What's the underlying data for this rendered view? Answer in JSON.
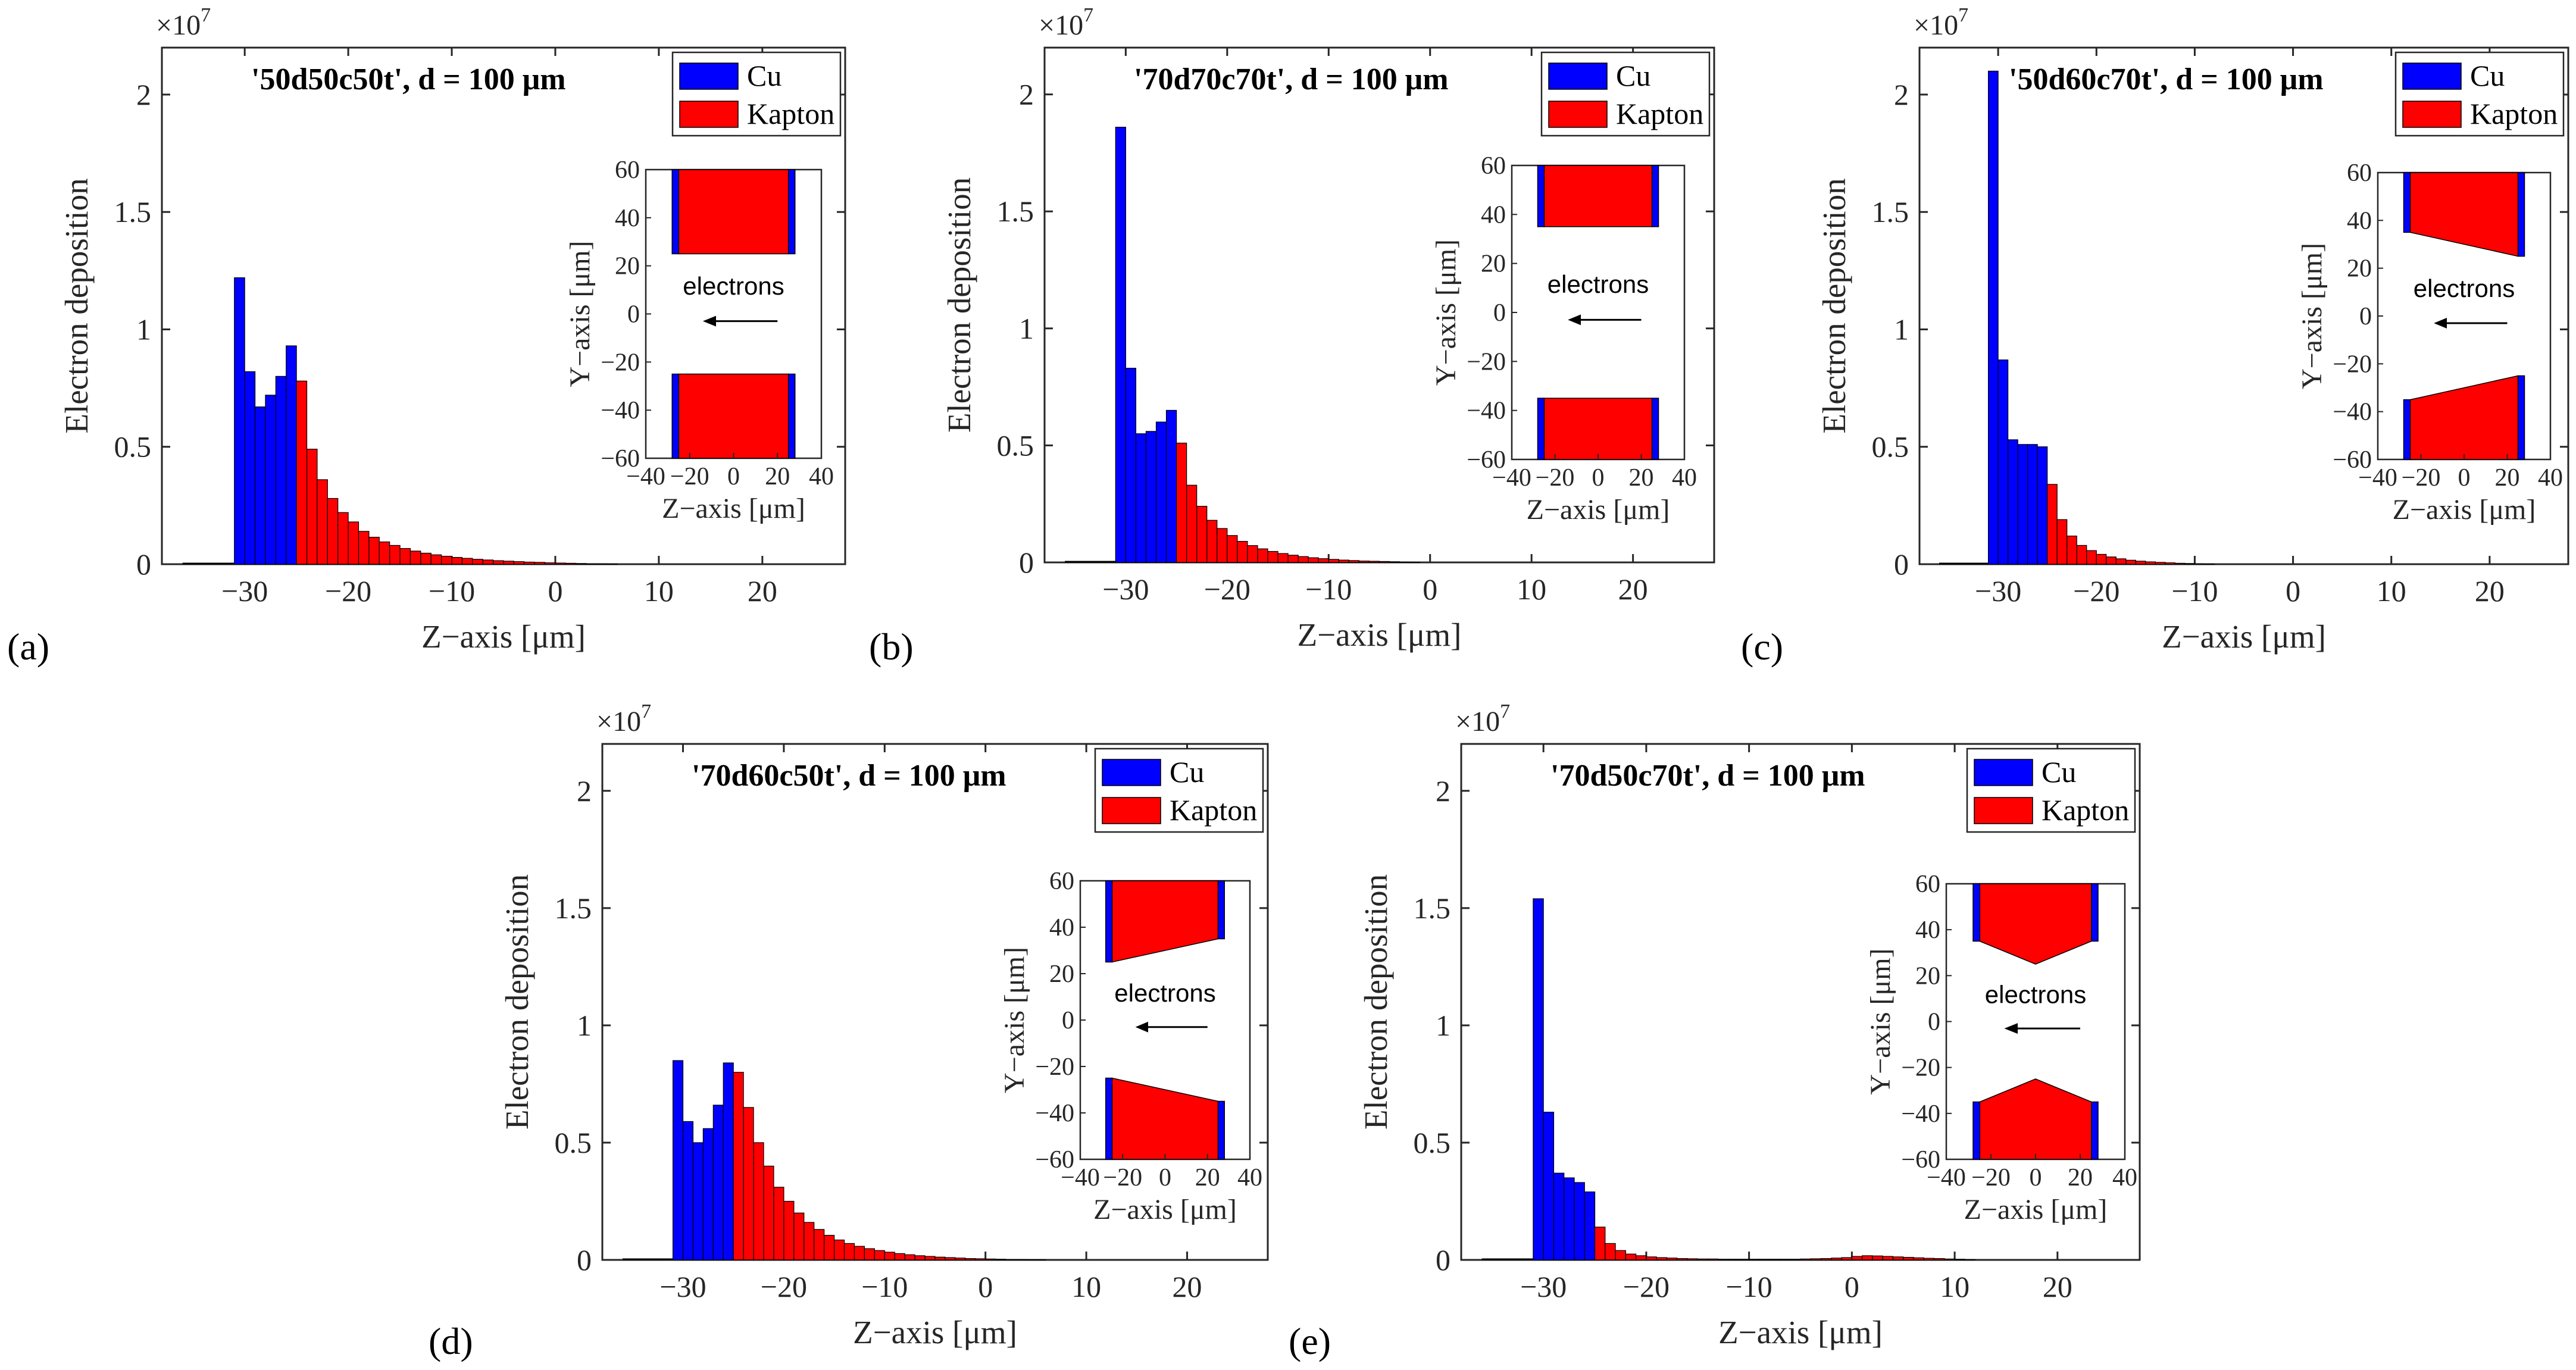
{
  "colors": {
    "cu": "#0000FF",
    "kapton": "#FF0000",
    "axis": "#262626",
    "background": "#FFFFFF"
  },
  "chart_data": [
    {
      "type": "bar",
      "panel_label": "(a)",
      "title": "'50d50c50t', d = 100 μm",
      "xlabel": "Z−axis [μm]",
      "ylabel": "Electron deposition",
      "multiplier": "×10",
      "multiplier_exp": "7",
      "xlim": [
        -38,
        28
      ],
      "ylim": [
        0,
        2.2
      ],
      "xticks": [
        -30,
        -20,
        -10,
        0,
        10,
        20
      ],
      "yticks": [
        0,
        0.5,
        1,
        1.5,
        2
      ],
      "bin_width": 1,
      "legend": [
        "Cu",
        "Kapton"
      ],
      "series": [
        {
          "name": "Cu",
          "x": [
            -31,
            -30,
            -29,
            -28,
            -27,
            -26
          ],
          "values": [
            1.22,
            0.82,
            0.67,
            0.72,
            0.8,
            0.93
          ]
        },
        {
          "name": "Kapton",
          "x": [
            -25,
            -24,
            -23,
            -22,
            -21,
            -20,
            -19,
            -18,
            -17,
            -16,
            -15,
            -14,
            -13,
            -12,
            -11,
            -10,
            -9,
            -8,
            -7,
            -6,
            -5,
            -4,
            -3,
            -2,
            -1,
            0,
            1,
            2,
            3,
            4,
            5
          ],
          "values": [
            0.78,
            0.49,
            0.36,
            0.28,
            0.22,
            0.18,
            0.14,
            0.115,
            0.095,
            0.08,
            0.067,
            0.056,
            0.047,
            0.04,
            0.034,
            0.029,
            0.025,
            0.021,
            0.018,
            0.015,
            0.013,
            0.011,
            0.009,
            0.008,
            0.006,
            0.005,
            0.004,
            0.003,
            0.002,
            0.002,
            0.001
          ]
        }
      ],
      "inset": {
        "xlabel": "Z−axis [μm]",
        "ylabel": "Y−axis [μm]",
        "annotation": "electrons",
        "xlim": [
          -40,
          40
        ],
        "ylim": [
          -60,
          60
        ],
        "xticks": [
          -40,
          -20,
          0,
          20,
          40
        ],
        "yticks": [
          -60,
          -40,
          -20,
          0,
          20,
          40,
          60
        ],
        "top_inner": [
          [
            -25,
            25
          ],
          [
            25,
            25
          ]
        ],
        "cu_width": 3,
        "cu_z": [
          -25,
          25
        ]
      }
    },
    {
      "type": "bar",
      "panel_label": "(b)",
      "title": "'70d70c70t', d = 100 μm",
      "xlabel": "Z−axis [μm]",
      "ylabel": "Electron deposition",
      "multiplier": "×10",
      "multiplier_exp": "7",
      "xlim": [
        -38,
        28
      ],
      "ylim": [
        0,
        2.2
      ],
      "xticks": [
        -30,
        -20,
        -10,
        0,
        10,
        20
      ],
      "yticks": [
        0,
        0.5,
        1,
        1.5,
        2
      ],
      "bin_width": 1,
      "legend": [
        "Cu",
        "Kapton"
      ],
      "series": [
        {
          "name": "Cu",
          "x": [
            -31,
            -30,
            -29,
            -28,
            -27,
            -26
          ],
          "values": [
            1.86,
            0.83,
            0.55,
            0.56,
            0.6,
            0.65
          ]
        },
        {
          "name": "Kapton",
          "x": [
            -25,
            -24,
            -23,
            -22,
            -21,
            -20,
            -19,
            -18,
            -17,
            -16,
            -15,
            -14,
            -13,
            -12,
            -11,
            -10,
            -9,
            -8,
            -7,
            -6,
            -5,
            -4,
            -3,
            -2
          ],
          "values": [
            0.51,
            0.33,
            0.24,
            0.18,
            0.145,
            0.115,
            0.09,
            0.072,
            0.058,
            0.047,
            0.038,
            0.031,
            0.025,
            0.02,
            0.016,
            0.013,
            0.01,
            0.008,
            0.006,
            0.005,
            0.004,
            0.003,
            0.002,
            0.001
          ]
        }
      ],
      "inset": {
        "xlabel": "Z−axis [μm]",
        "ylabel": "Y−axis [μm]",
        "annotation": "electrons",
        "xlim": [
          -40,
          40
        ],
        "ylim": [
          -60,
          60
        ],
        "xticks": [
          -40,
          -20,
          0,
          20,
          40
        ],
        "yticks": [
          -60,
          -40,
          -20,
          0,
          20,
          40,
          60
        ],
        "top_inner": [
          [
            -25,
            35
          ],
          [
            25,
            35
          ]
        ],
        "cu_width": 3,
        "cu_z": [
          -25,
          25
        ]
      }
    },
    {
      "type": "bar",
      "panel_label": "(c)",
      "title": "'50d60c70t', d = 100 μm",
      "xlabel": "Z−axis [μm]",
      "ylabel": "Electron deposition",
      "multiplier": "×10",
      "multiplier_exp": "7",
      "xlim": [
        -38,
        28
      ],
      "ylim": [
        0,
        2.2
      ],
      "xticks": [
        -30,
        -20,
        -10,
        0,
        10,
        20
      ],
      "yticks": [
        0,
        0.5,
        1,
        1.5,
        2
      ],
      "bin_width": 1,
      "legend": [
        "Cu",
        "Kapton"
      ],
      "series": [
        {
          "name": "Cu",
          "x": [
            -31,
            -30,
            -29,
            -28,
            -27,
            -26
          ],
          "values": [
            2.1,
            0.87,
            0.53,
            0.51,
            0.51,
            0.5
          ]
        },
        {
          "name": "Kapton",
          "x": [
            -25,
            -24,
            -23,
            -22,
            -21,
            -20,
            -19,
            -18,
            -17,
            -16,
            -15,
            -14,
            -13,
            -12,
            -11,
            -10,
            -9
          ],
          "values": [
            0.34,
            0.19,
            0.12,
            0.08,
            0.058,
            0.042,
            0.031,
            0.023,
            0.017,
            0.013,
            0.01,
            0.008,
            0.006,
            0.004,
            0.003,
            0.002,
            0.001
          ]
        }
      ],
      "inset": {
        "xlabel": "Z−axis [μm]",
        "ylabel": "Y−axis [μm]",
        "annotation": "electrons",
        "xlim": [
          -40,
          40
        ],
        "ylim": [
          -60,
          60
        ],
        "xticks": [
          -40,
          -20,
          0,
          20,
          40
        ],
        "yticks": [
          -60,
          -40,
          -20,
          0,
          20,
          40,
          60
        ],
        "top_inner": [
          [
            -25,
            35
          ],
          [
            25,
            25
          ]
        ],
        "cu_width": 3,
        "cu_z": [
          -25,
          25
        ]
      }
    },
    {
      "type": "bar",
      "panel_label": "(d)",
      "title": "'70d60c50t', d = 100 μm",
      "xlabel": "Z−axis [μm]",
      "ylabel": "Electron deposition",
      "multiplier": "×10",
      "multiplier_exp": "7",
      "xlim": [
        -38,
        28
      ],
      "ylim": [
        0,
        2.2
      ],
      "xticks": [
        -30,
        -20,
        -10,
        0,
        10,
        20
      ],
      "yticks": [
        0,
        0.5,
        1,
        1.5,
        2
      ],
      "bin_width": 1,
      "legend": [
        "Cu",
        "Kapton"
      ],
      "series": [
        {
          "name": "Cu",
          "x": [
            -31,
            -30,
            -29,
            -28,
            -27,
            -26
          ],
          "values": [
            0.85,
            0.59,
            0.5,
            0.56,
            0.66,
            0.84
          ]
        },
        {
          "name": "Kapton",
          "x": [
            -25,
            -24,
            -23,
            -22,
            -21,
            -20,
            -19,
            -18,
            -17,
            -16,
            -15,
            -14,
            -13,
            -12,
            -11,
            -10,
            -9,
            -8,
            -7,
            -6,
            -5,
            -4,
            -3,
            -2,
            -1,
            0,
            1,
            2,
            3,
            4,
            5
          ],
          "values": [
            0.8,
            0.65,
            0.5,
            0.4,
            0.31,
            0.25,
            0.2,
            0.16,
            0.13,
            0.105,
            0.085,
            0.07,
            0.058,
            0.048,
            0.04,
            0.033,
            0.027,
            0.022,
            0.018,
            0.015,
            0.012,
            0.01,
            0.008,
            0.006,
            0.005,
            0.004,
            0.003,
            0.002,
            0.002,
            0.001,
            0.001
          ]
        }
      ],
      "inset": {
        "xlabel": "Z−axis [μm]",
        "ylabel": "Y−axis [μm]",
        "annotation": "electrons",
        "xlim": [
          -40,
          40
        ],
        "ylim": [
          -60,
          60
        ],
        "xticks": [
          -40,
          -20,
          0,
          20,
          40
        ],
        "yticks": [
          -60,
          -40,
          -20,
          0,
          20,
          40,
          60
        ],
        "top_inner": [
          [
            -25,
            25
          ],
          [
            25,
            35
          ]
        ],
        "cu_width": 3,
        "cu_z": [
          -25,
          25
        ]
      }
    },
    {
      "type": "bar",
      "panel_label": "(e)",
      "title": "'70d50c70t', d = 100 μm",
      "xlabel": "Z−axis [μm]",
      "ylabel": "Electron deposition",
      "multiplier": "×10",
      "multiplier_exp": "7",
      "xlim": [
        -38,
        28
      ],
      "ylim": [
        0,
        2.2
      ],
      "xticks": [
        -30,
        -20,
        -10,
        0,
        10,
        20
      ],
      "yticks": [
        0,
        0.5,
        1,
        1.5,
        2
      ],
      "bin_width": 1,
      "legend": [
        "Cu",
        "Kapton"
      ],
      "series": [
        {
          "name": "Cu",
          "x": [
            -31,
            -30,
            -29,
            -28,
            -27,
            -26
          ],
          "values": [
            1.54,
            0.63,
            0.37,
            0.35,
            0.33,
            0.29
          ]
        },
        {
          "name": "Kapton",
          "x": [
            -25,
            -24,
            -23,
            -22,
            -21,
            -20,
            -19,
            -18,
            -17,
            -16,
            -15,
            -14,
            -13,
            -12,
            -11,
            -10,
            -9,
            -8,
            -7,
            -6,
            -5,
            -4,
            -3,
            -2,
            -1,
            0,
            1,
            2,
            3,
            4,
            5,
            6,
            7,
            8,
            9,
            10,
            11
          ],
          "values": [
            0.14,
            0.07,
            0.04,
            0.025,
            0.018,
            0.013,
            0.01,
            0.008,
            0.006,
            0.005,
            0.004,
            0.004,
            0.003,
            0.003,
            0.003,
            0.003,
            0.003,
            0.003,
            0.003,
            0.003,
            0.004,
            0.005,
            0.006,
            0.008,
            0.01,
            0.015,
            0.018,
            0.017,
            0.015,
            0.013,
            0.011,
            0.009,
            0.007,
            0.006,
            0.004,
            0.003,
            0.002
          ]
        }
      ],
      "inset": {
        "xlabel": "Z−axis [μm]",
        "ylabel": "Y−axis [μm]",
        "annotation": "electrons",
        "xlim": [
          -40,
          40
        ],
        "ylim": [
          -60,
          60
        ],
        "xticks": [
          -40,
          -20,
          0,
          20,
          40
        ],
        "yticks": [
          -60,
          -40,
          -20,
          0,
          20,
          40,
          60
        ],
        "top_inner": [
          [
            -25,
            35
          ],
          [
            0,
            25
          ],
          [
            25,
            35
          ]
        ],
        "cu_width": 3,
        "cu_z": [
          -25,
          25
        ]
      }
    }
  ]
}
